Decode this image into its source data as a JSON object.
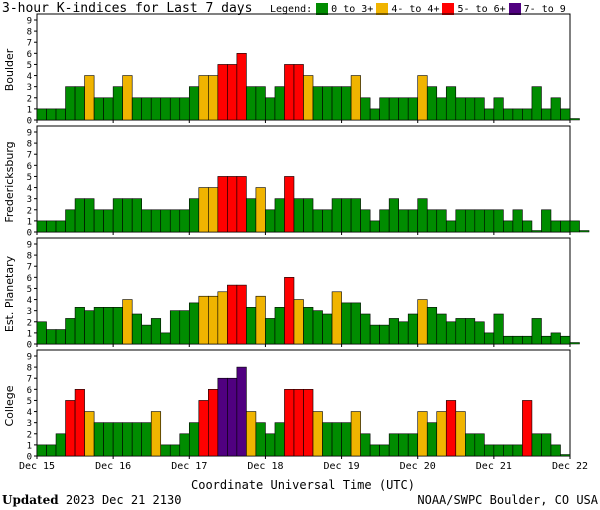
{
  "title": "3-hour K-indices for Last 7 days",
  "legend": {
    "label": "Legend:",
    "items": [
      {
        "label": "0 to 3+",
        "color": "#008c00"
      },
      {
        "label": "4- to 4+",
        "color": "#f0b400"
      },
      {
        "label": "5- to 6+",
        "color": "#ff0000"
      },
      {
        "label": "7- to 9",
        "color": "#500080"
      }
    ]
  },
  "footer": {
    "updated_label": "Updated",
    "updated_value": "2023 Dec 21 2130",
    "credit": "NOAA/SWPC Boulder, CO USA"
  },
  "chart_data": {
    "type": "bar",
    "xlabel": "Coordinate Universal Time (UTC)",
    "x_ticks": [
      "Dec 15",
      "Dec 16",
      "Dec 17",
      "Dec 18",
      "Dec 19",
      "Dec 20",
      "Dec 21",
      "Dec 22"
    ],
    "bars_per_day": 8,
    "ylim": [
      0,
      9
    ],
    "yticks": [
      0,
      1,
      2,
      3,
      4,
      5,
      6,
      7,
      8,
      9
    ],
    "panels": [
      {
        "ylabel": "Boulder",
        "values": [
          1,
          1,
          1,
          3,
          3,
          4,
          2,
          2,
          3,
          4,
          2,
          2,
          2,
          2,
          2,
          2,
          3,
          4,
          4,
          5,
          5,
          6,
          3,
          3,
          2,
          3,
          5,
          5,
          4,
          3,
          3,
          3,
          3,
          4,
          2,
          1,
          2,
          2,
          2,
          2,
          4,
          3,
          2,
          3,
          2,
          2,
          2,
          1,
          2,
          1,
          1,
          1,
          3,
          1,
          2,
          1,
          0
        ]
      },
      {
        "ylabel": "Fredericksburg",
        "values": [
          1,
          1,
          1,
          2,
          3,
          3,
          2,
          2,
          3,
          3,
          3,
          2,
          2,
          2,
          2,
          2,
          3,
          4,
          4,
          5,
          5,
          5,
          3,
          4,
          2,
          3,
          5,
          3,
          3,
          2,
          2,
          3,
          3,
          3,
          2,
          1,
          2,
          3,
          2,
          2,
          3,
          2,
          2,
          1,
          2,
          2,
          2,
          2,
          2,
          1,
          2,
          1,
          0,
          2,
          1,
          1,
          1,
          0
        ]
      },
      {
        "ylabel": "Est. Planetary",
        "values": [
          2,
          1.3,
          1.3,
          2.3,
          3.3,
          3,
          3.3,
          3.3,
          3.3,
          4,
          2.7,
          1.7,
          2.3,
          1,
          3,
          3,
          3.7,
          4.3,
          4.3,
          4.7,
          5.3,
          5.3,
          3.3,
          4.3,
          2.3,
          3.3,
          6,
          4,
          3.3,
          3,
          2.7,
          4.7,
          3.7,
          3.7,
          2.7,
          1.7,
          1.7,
          2.3,
          2,
          2.7,
          4,
          3.3,
          2.7,
          2,
          2.3,
          2.3,
          2,
          1,
          2.7,
          0.7,
          0.7,
          0.7,
          2.3,
          0.7,
          1,
          0.7,
          0
        ]
      },
      {
        "ylabel": "College",
        "values": [
          1,
          1,
          2,
          5,
          6,
          4,
          3,
          3,
          3,
          3,
          3,
          3,
          4,
          1,
          1,
          2,
          3,
          5,
          6,
          7,
          7,
          8,
          4,
          3,
          2,
          3,
          6,
          6,
          6,
          4,
          3,
          3,
          3,
          4,
          2,
          1,
          1,
          2,
          2,
          2,
          4,
          3,
          4,
          5,
          4,
          2,
          2,
          1,
          1,
          1,
          1,
          5,
          2,
          2,
          1,
          0
        ]
      }
    ]
  }
}
